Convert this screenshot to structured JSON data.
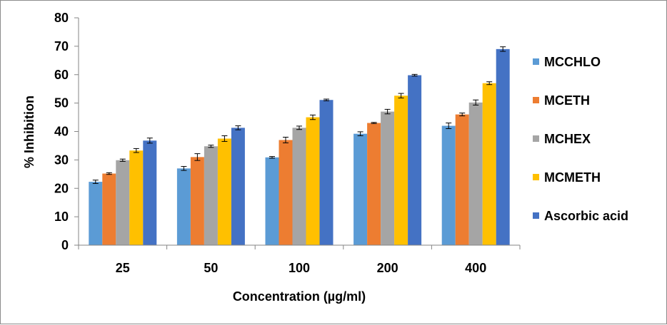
{
  "chart_data": {
    "type": "bar",
    "title": "",
    "xlabel": "Concentration (µg/ml)",
    "ylabel": "% Inhibition",
    "ylim": [
      0,
      80
    ],
    "yticks": [
      0,
      10,
      20,
      30,
      40,
      50,
      60,
      70,
      80
    ],
    "grid": false,
    "legend_position": "right",
    "categories": [
      "25",
      "50",
      "100",
      "200",
      "400"
    ],
    "series": [
      {
        "name": "MCCHLO",
        "color": "#5B9BD5",
        "values": [
          22.3,
          27.0,
          30.9,
          39.2,
          42.0
        ],
        "errors": [
          0.6,
          0.7,
          0.3,
          0.7,
          1.0
        ]
      },
      {
        "name": "MCETH",
        "color": "#ED7D31",
        "values": [
          25.2,
          31.0,
          37.0,
          43.0,
          46.0
        ],
        "errors": [
          0.3,
          1.2,
          1.0,
          0.2,
          0.5
        ]
      },
      {
        "name": "MCHEX",
        "color": "#A5A5A5",
        "values": [
          29.9,
          34.8,
          41.3,
          47.0,
          50.2
        ],
        "errors": [
          0.4,
          0.4,
          0.6,
          0.8,
          0.9
        ]
      },
      {
        "name": "MCMETH",
        "color": "#FFC000",
        "values": [
          33.3,
          37.5,
          45.0,
          52.6,
          57.0
        ],
        "errors": [
          0.7,
          1.0,
          0.8,
          0.8,
          0.5
        ]
      },
      {
        "name": "Ascorbic acid",
        "color": "#4472C4",
        "values": [
          36.8,
          41.3,
          51.1,
          59.8,
          69.0
        ],
        "errors": [
          0.9,
          0.7,
          0.3,
          0.3,
          0.8
        ]
      }
    ]
  }
}
